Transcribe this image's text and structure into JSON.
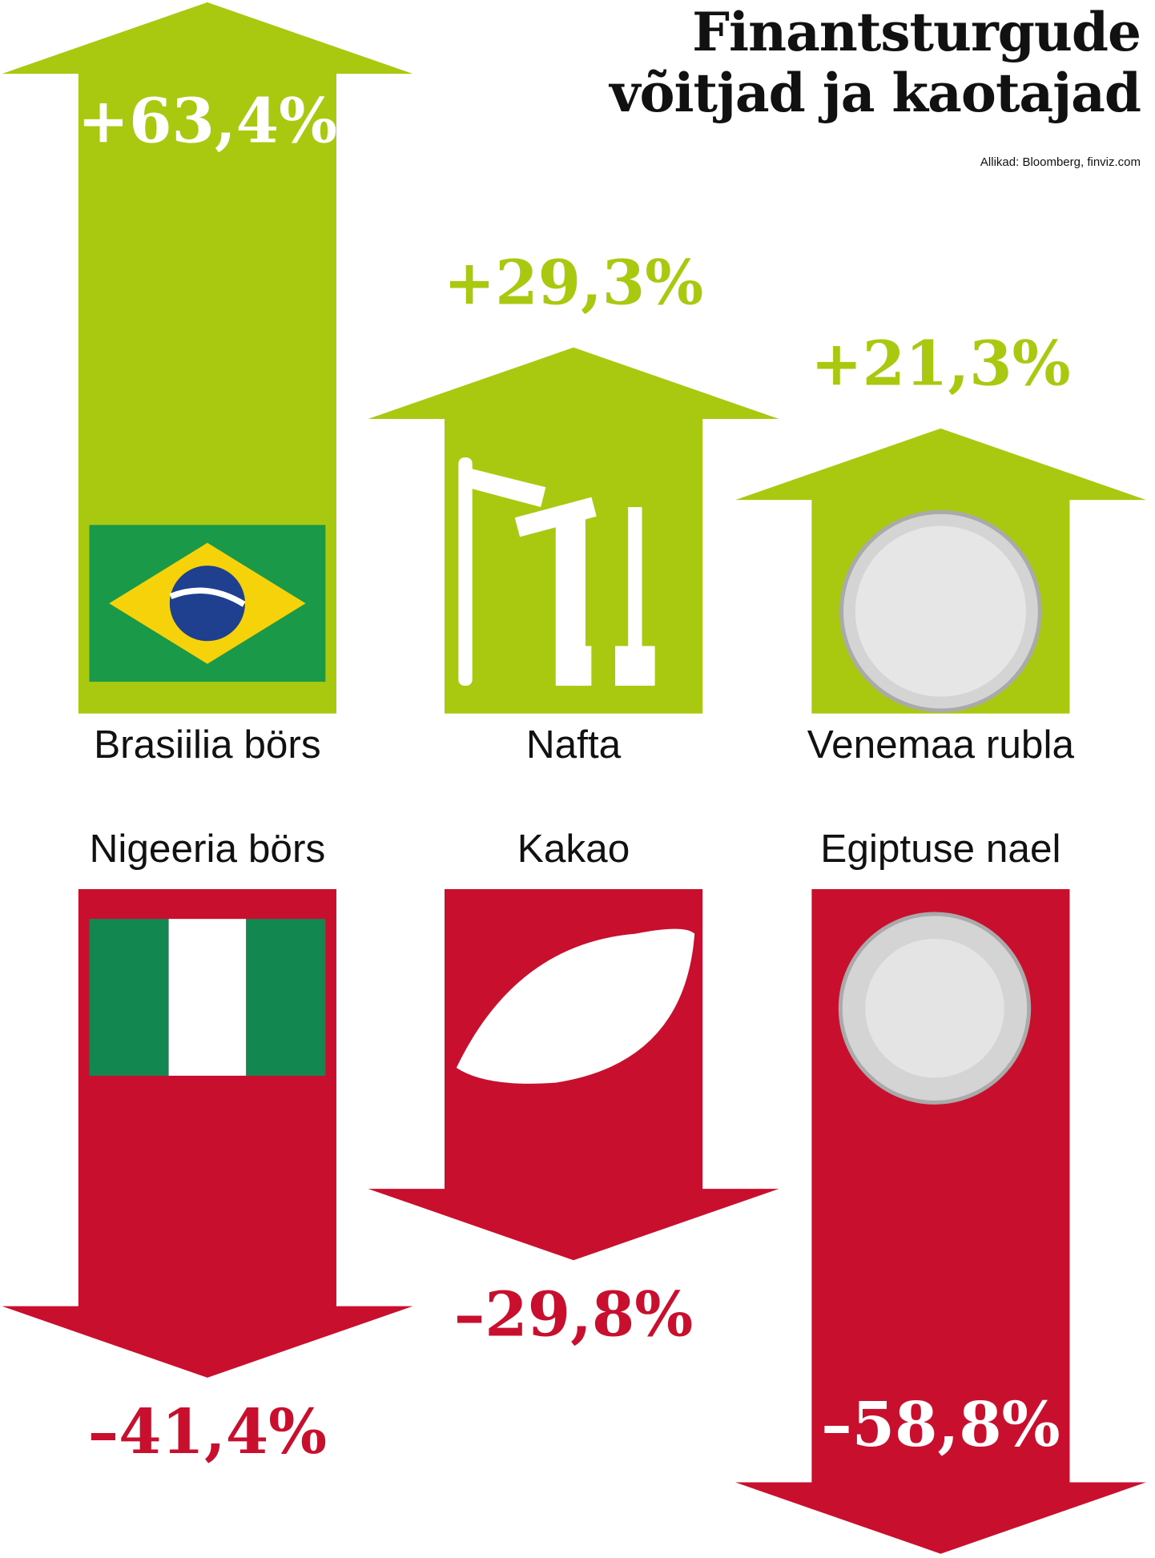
{
  "chart_data": {
    "type": "arrow",
    "title": "Finantsturgude võitjad ja kaotajad",
    "source": "Allikad: Bloomberg, finviz.com",
    "categories": [
      "Brasiilia börs",
      "Nafta",
      "Venemaa rubla",
      "Nigeeria börs",
      "Kakao",
      "Egiptuse nael"
    ],
    "values": [
      63.4,
      29.3,
      21.3,
      -41.4,
      -29.8,
      -58.8
    ],
    "value_labels": [
      "+63,4%",
      "+29,3%",
      "+21,3%",
      "–41,4%",
      "–29,8%",
      "–58,8%"
    ],
    "positive_color": "#a8c90f",
    "negative_color": "#c8102e"
  }
}
